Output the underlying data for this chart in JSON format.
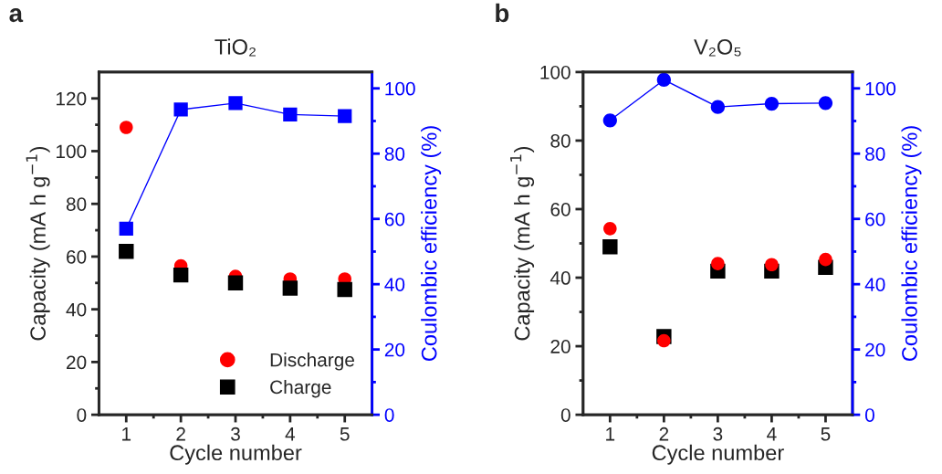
{
  "chart_data": [
    {
      "type": "scatter",
      "title": "TiO₂",
      "xlabel": "Cycle number",
      "ylabel": "Capacity (mA h g$^{−1}$)",
      "y2label": "Coulombic efficiency (%)",
      "annotations": [
        "a"
      ],
      "x": [
        1,
        2,
        3,
        4,
        5
      ],
      "xlim": [
        0.5,
        5.5
      ],
      "xticks": [
        1,
        2,
        3,
        4,
        5,
        {
          "value": 1.5,
          "label": null
        },
        {
          "value": 2.5,
          "label": null
        },
        {
          "value": 3.5,
          "label": null
        },
        {
          "value": 4.5,
          "label": null
        }
      ],
      "ylim": [
        0,
        130
      ],
      "yticks": [
        0,
        20,
        40,
        60,
        80,
        100,
        120,
        {
          "value": 10,
          "label": null
        },
        {
          "value": 30,
          "label": null
        },
        {
          "value": 50,
          "label": null
        },
        {
          "value": 70,
          "label": null
        },
        {
          "value": 90,
          "label": null
        },
        {
          "value": 110,
          "label": null
        }
      ],
      "y2lim": [
        0,
        105
      ],
      "y2ticks": [
        0,
        20,
        40,
        60,
        80,
        100,
        {
          "value": 10,
          "label": null
        },
        {
          "value": 30,
          "label": null
        },
        {
          "value": 50,
          "label": null
        },
        {
          "value": 70,
          "label": null
        },
        {
          "value": 90,
          "label": null
        }
      ],
      "legend": "bottom right",
      "grid": false,
      "series": [
        {
          "name": "Discharge",
          "type": "scatter",
          "marker": "circle",
          "color": "#ff0000",
          "values": [
            109,
            56.5,
            52.5,
            51.5,
            51.5
          ]
        },
        {
          "name": "Charge",
          "type": "scatter",
          "marker": "square",
          "color": "#000000",
          "values": [
            62,
            53,
            50,
            48,
            47.5
          ]
        },
        {
          "type": "line",
          "axis": "y2",
          "marker": "square",
          "color": "#0000ff",
          "values": [
            57,
            93.5,
            95.5,
            92,
            91.5
          ]
        }
      ]
    },
    {
      "type": "scatter",
      "title": "V₂O₅",
      "xlabel": "Cycle number",
      "ylabel": "Capacity (mA h g$^{−1}$)",
      "y2label": "Coulombic efficiency (%)",
      "annotations": [
        "b"
      ],
      "x": [
        1,
        2,
        3,
        4,
        5
      ],
      "xlim": [
        0.5,
        5.5
      ],
      "xticks": [
        1,
        2,
        3,
        4,
        5,
        {
          "value": 1.5,
          "label": null
        },
        {
          "value": 2.5,
          "label": null
        },
        {
          "value": 3.5,
          "label": null
        },
        {
          "value": 4.5,
          "label": null
        }
      ],
      "ylim": [
        0,
        100
      ],
      "yticks": [
        0,
        20,
        40,
        60,
        80,
        100,
        {
          "value": 10,
          "label": null
        },
        {
          "value": 30,
          "label": null
        },
        {
          "value": 50,
          "label": null
        },
        {
          "value": 70,
          "label": null
        },
        {
          "value": 90,
          "label": null
        }
      ],
      "y2lim": [
        0,
        105
      ],
      "y2ticks": [
        0,
        20,
        40,
        60,
        80,
        100,
        {
          "value": 10,
          "label": null
        },
        {
          "value": 30,
          "label": null
        },
        {
          "value": 50,
          "label": null
        },
        {
          "value": 70,
          "label": null
        },
        {
          "value": 90,
          "label": null
        }
      ],
      "grid": false,
      "series": [
        {
          "type": "scatter",
          "marker": "square",
          "color": "#000000",
          "values": [
            49,
            22.8,
            41.9,
            41.9,
            43
          ]
        },
        {
          "type": "scatter",
          "marker": "circle",
          "color": "#ff0000",
          "values": [
            54.3,
            21.6,
            44.1,
            43.8,
            45.3
          ]
        },
        {
          "type": "line",
          "axis": "y2",
          "marker": "circle",
          "color": "#0000ff",
          "values": [
            90.2,
            102.6,
            94.3,
            95.3,
            95.5
          ]
        }
      ]
    }
  ]
}
